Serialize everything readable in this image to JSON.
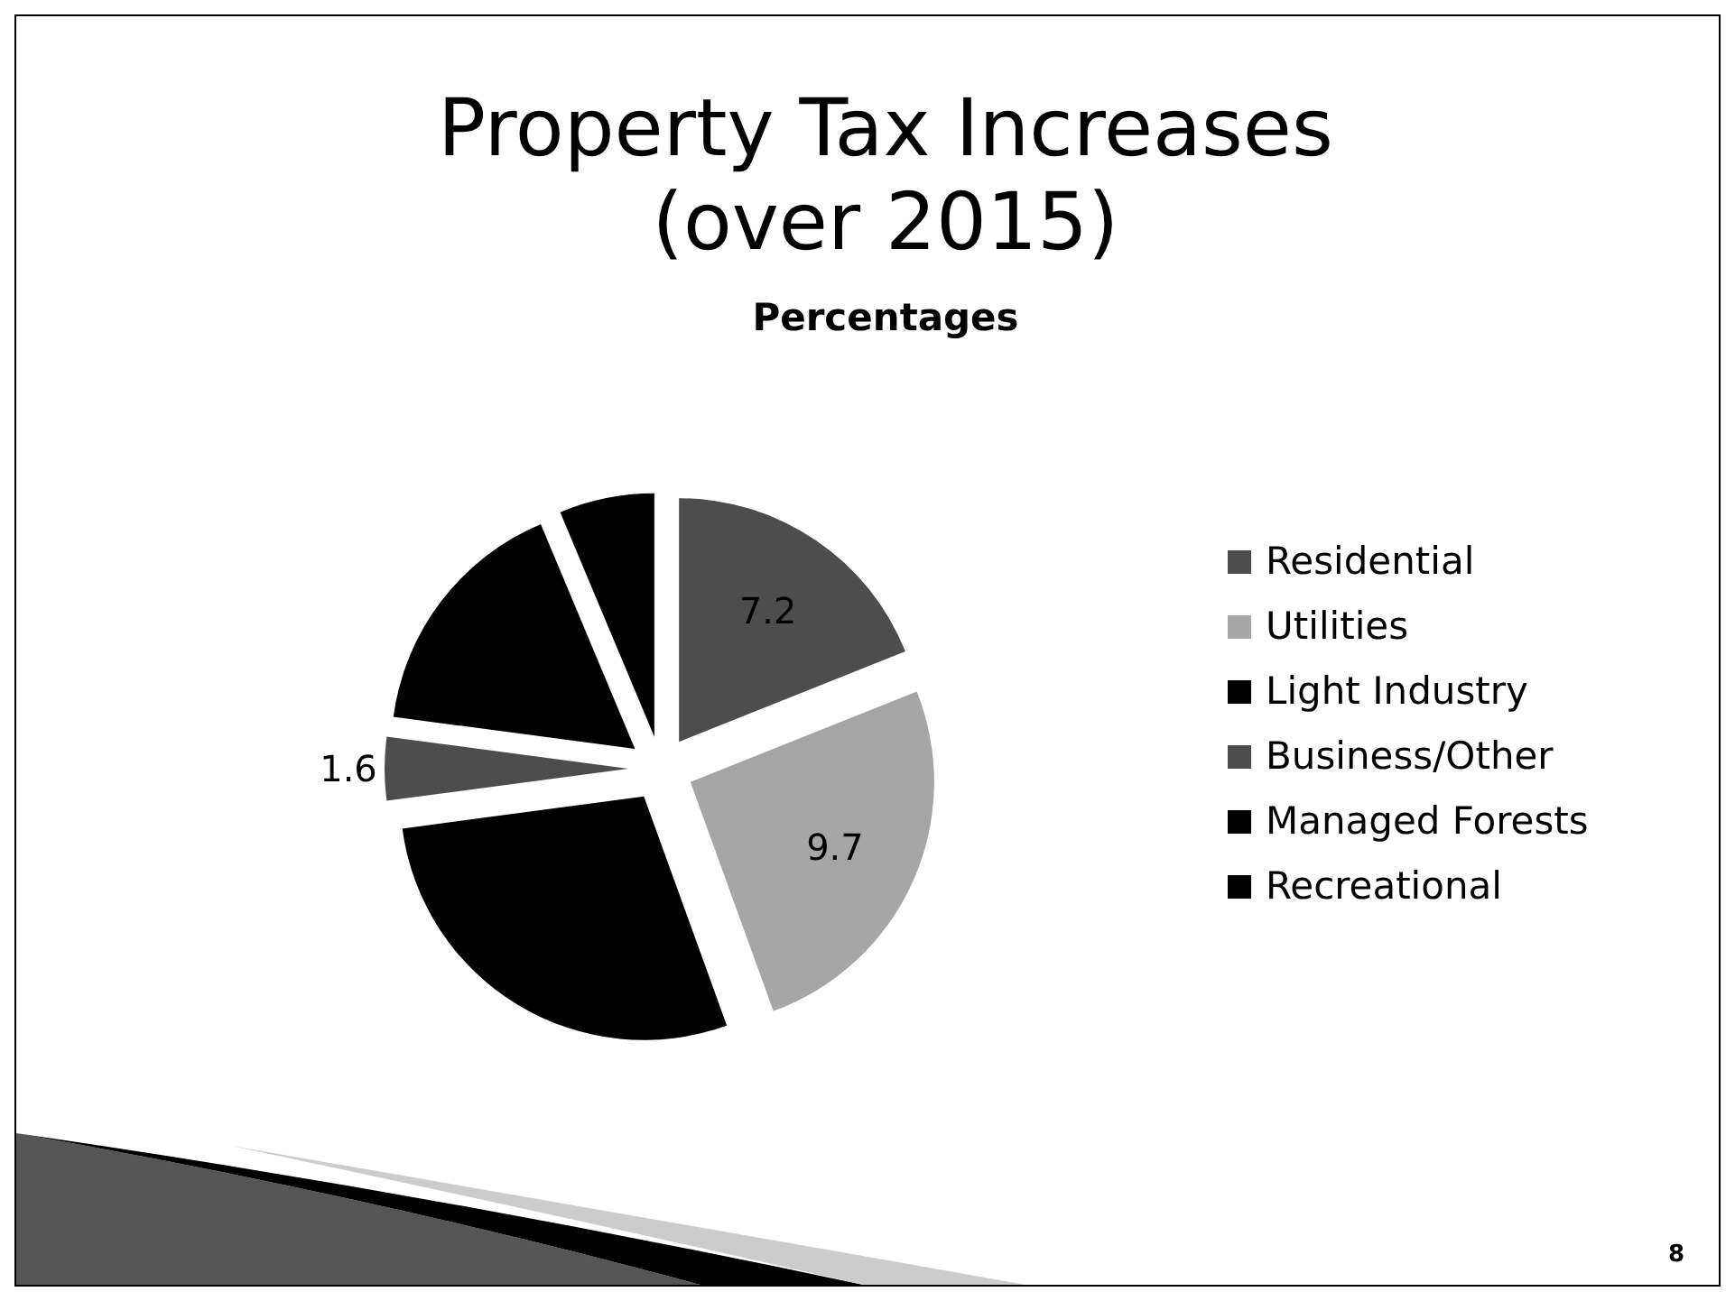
{
  "chart_data": {
    "type": "pie",
    "title": "Property Tax Increases\n(over 2015)",
    "subtitle": "Percentages",
    "categories": [
      "Residential",
      "Utilities",
      "Light Industry",
      "Business/Other",
      "Managed Forests",
      "Recreational"
    ],
    "values": [
      7.2,
      9.7,
      10.8,
      1.6,
      6.3,
      2.4
    ],
    "colors": [
      "#4d4d4d",
      "#a6a6a6",
      "#000000",
      "#4d4d4d",
      "#000000",
      "#000000"
    ],
    "value_labels": [
      "7.2",
      "9.7",
      null,
      "1.6",
      null,
      null
    ],
    "legend": "right",
    "annotations": [
      "8"
    ]
  }
}
